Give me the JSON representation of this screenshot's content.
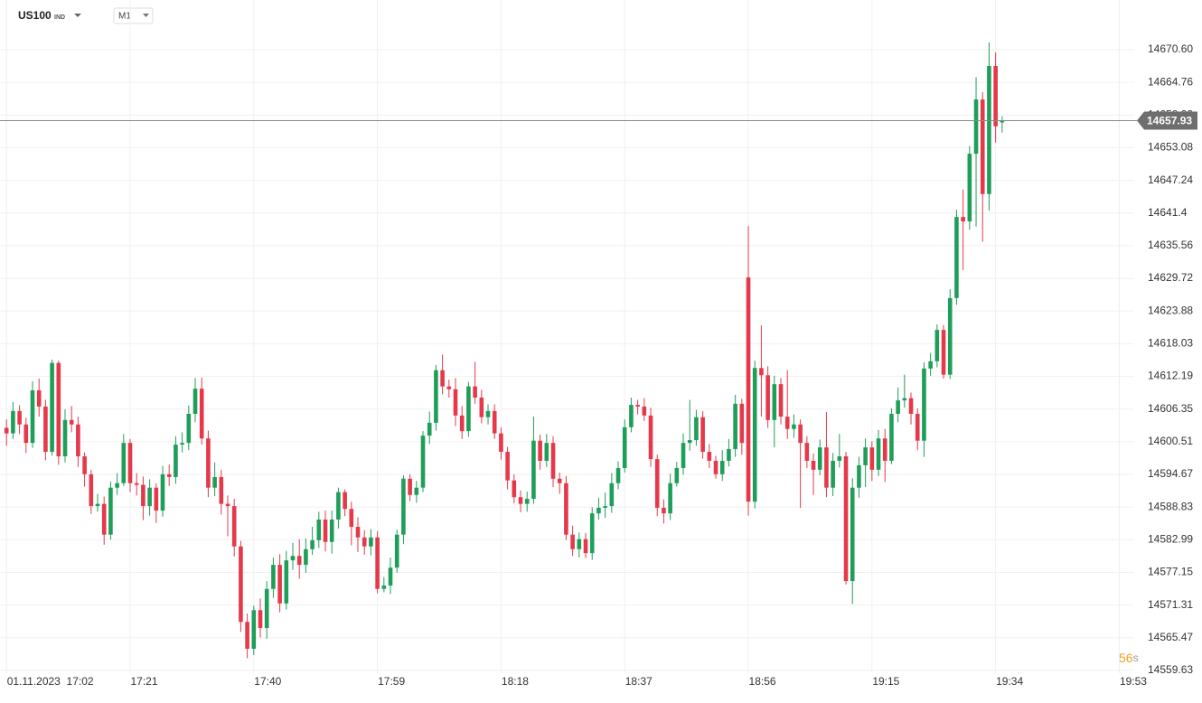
{
  "header": {
    "symbol": "US100",
    "symbol_type": "IND",
    "timeframe": "M1"
  },
  "chart_data": {
    "type": "candlestick",
    "up_color": "#1f9e5a",
    "down_color": "#e5394b",
    "xlim": [
      -1,
      173.3
    ],
    "xticks": [
      {
        "value": 0,
        "label": "01.11.2023  17:02"
      },
      {
        "value": 19,
        "label": "17:21"
      },
      {
        "value": 38,
        "label": "17:40"
      },
      {
        "value": 57,
        "label": "17:59"
      },
      {
        "value": 76,
        "label": "18:18"
      },
      {
        "value": 95,
        "label": "18:37"
      },
      {
        "value": 114,
        "label": "18:56"
      },
      {
        "value": 133,
        "label": "19:15"
      },
      {
        "value": 152,
        "label": "19:34"
      },
      {
        "value": 171,
        "label": "19:53"
      }
    ],
    "ylim": [
      14559.13,
      14679.49
    ],
    "yticks": [
      {
        "value": 14670.6,
        "label": "14670.60"
      },
      14664.76,
      14658.92,
      14653.08,
      14647.24,
      14641.4,
      14635.56,
      14629.72,
      14623.88,
      14618.03,
      14612.19,
      14606.35,
      14600.51,
      14594.67,
      14588.83,
      14582.99,
      14577.15,
      14571.31,
      14565.47,
      14559.63
    ],
    "grid": true,
    "last_price": 14657.93,
    "countdown": "56",
    "countdown_unit": "s",
    "open": [
      14603.0,
      14602.0,
      14606.0,
      14603.6,
      14600.3,
      14609.7,
      14606.8,
      14598.7,
      14614.6,
      14597.9,
      14604.4,
      14603.6,
      14597.9,
      14594.7,
      14589.0,
      14589.4,
      14583.9,
      14592.3,
      14593.1,
      14600.3,
      14593.1,
      14592.8,
      14589.0,
      14592.3,
      14588.2,
      14594.7,
      14594.2,
      14600.0,
      14600.3,
      14605.5,
      14610.0,
      14601.1,
      14592.3,
      14594.2,
      14589.4,
      14589.0,
      14581.8,
      14568.3,
      14563.5,
      14570.4,
      14567.2,
      14574.2,
      14578.5,
      14571.6,
      14579.3,
      14580.1,
      14578.5,
      14581.3,
      14582.9,
      14586.6,
      14582.6,
      14586.6,
      14591.5,
      14588.5,
      14585.3,
      14583.4,
      14581.8,
      14583.4,
      14574.2,
      14574.8,
      14578.0,
      14583.9,
      14593.9,
      14591.0,
      14592.3,
      14601.6,
      14603.9,
      14613.3,
      14610.4,
      14609.9,
      14605.2,
      14602.4,
      14610.4,
      14608.4,
      14604.9,
      14606.0,
      14602.0,
      14598.7,
      14593.6,
      14590.6,
      14589.4,
      14590.3,
      14600.7,
      14597.1,
      14600.3,
      14593.9,
      14593.1,
      14583.9,
      14581.3,
      14583.1,
      14580.6,
      14587.7,
      14588.7,
      14589.0,
      14593.1,
      14595.8,
      14603.1,
      14607.1,
      14606.8,
      14605.2,
      14597.4,
      14588.7,
      14587.7,
      14593.1,
      14595.8,
      14600.3,
      14600.8,
      14604.9,
      14598.7,
      14597.1,
      14594.7,
      14597.1,
      14599.2,
      14607.3,
      14629.9,
      14589.8,
      14613.7,
      14612.4,
      14604.4,
      14610.8,
      14605.0,
      14602.8,
      14603.6,
      14600.3,
      14597.1,
      14595.5,
      14599.5,
      14592.3,
      14597.1,
      14597.9,
      14575.6,
      14592.3,
      14596.3,
      14599.5,
      14595.5,
      14601.1,
      14597.1,
      14605.5,
      14607.9,
      14608.3,
      14605.5,
      14600.7,
      14613.6,
      14614.9,
      14620.5,
      14612.5,
      14626.2,
      14640.7,
      14639.9,
      14652.0,
      14661.7,
      14644.8,
      14667.7,
      14657.6
    ],
    "high": [
      14604.5,
      14607.6,
      14607.0,
      14604.8,
      14611.3,
      14611.8,
      14608.0,
      14615.2,
      14615.0,
      14606.3,
      14606.9,
      14605.0,
      14598.6,
      14595.5,
      14591.2,
      14590.7,
      14593.4,
      14594.9,
      14601.9,
      14601.0,
      14594.9,
      14594.3,
      14593.8,
      14593.1,
      14596.2,
      14596.4,
      14601.5,
      14602.2,
      14607.0,
      14611.9,
      14612.0,
      14602.5,
      14596.8,
      14595.5,
      14590.9,
      14590.3,
      14582.8,
      14569.8,
      14571.2,
      14572.5,
      14575.6,
      14579.8,
      14580.4,
      14581.0,
      14582.4,
      14583.1,
      14583.2,
      14585.3,
      14588.0,
      14588.2,
      14588.2,
      14592.3,
      14592.0,
      14589.8,
      14587.0,
      14584.7,
      14584.9,
      14584.5,
      14576.3,
      14579.8,
      14584.8,
      14594.5,
      14594.7,
      14593.5,
      14602.4,
      14605.9,
      14614.2,
      14616.1,
      14611.6,
      14611.9,
      14606.9,
      14611.2,
      14614.8,
      14609.8,
      14607.2,
      14607.2,
      14603.1,
      14599.6,
      14594.7,
      14591.8,
      14591.6,
      14605.0,
      14601.8,
      14601.9,
      14601.5,
      14595.0,
      14594.4,
      14585.5,
      14584.3,
      14584.2,
      14588.8,
      14590.5,
      14591.4,
      14594.9,
      14597.0,
      14604.5,
      14608.4,
      14608.0,
      14608.3,
      14606.6,
      14598.2,
      14590.2,
      14594.8,
      14596.9,
      14602.0,
      14608.0,
      14606.2,
      14606.0,
      14600.1,
      14598.0,
      14599.0,
      14601.0,
      14608.9,
      14608.2,
      14639.1,
      14615.0,
      14621.3,
      14614.0,
      14612.3,
      14611.9,
      14613.3,
      14605.4,
      14604.5,
      14601.5,
      14598.4,
      14600.9,
      14605.8,
      14598.5,
      14601.9,
      14598.7,
      14594.0,
      14597.8,
      14601.1,
      14600.6,
      14602.6,
      14602.8,
      14606.5,
      14610.2,
      14612.5,
      14609.3,
      14606.5,
      14614.7,
      14616.4,
      14621.5,
      14621.4,
      14627.8,
      14642.0,
      14645.6,
      14653.4,
      14665.7,
      14663.0,
      14671.9,
      14670.1,
      14658.7
    ],
    "low": [
      14599.8,
      14601.0,
      14601.9,
      14598.5,
      14599.4,
      14605.0,
      14597.2,
      14598.0,
      14596.4,
      14596.8,
      14602.2,
      14596.0,
      14592.5,
      14587.6,
      14588.0,
      14582.1,
      14583.0,
      14591.0,
      14592.6,
      14591.5,
      14590.9,
      14586.5,
      14587.3,
      14586.0,
      14587.1,
      14592.6,
      14593.0,
      14598.6,
      14599.0,
      14604.0,
      14600.0,
      14590.6,
      14590.8,
      14587.5,
      14583.6,
      14580.0,
      14566.5,
      14561.8,
      14562.4,
      14565.5,
      14565.3,
      14572.6,
      14570.0,
      14570.5,
      14577.6,
      14576.0,
      14577.1,
      14580.3,
      14581.5,
      14580.9,
      14580.5,
      14585.0,
      14587.2,
      14582.0,
      14580.8,
      14580.3,
      14580.2,
      14573.4,
      14573.6,
      14573.3,
      14577.1,
      14582.2,
      14589.9,
      14589.6,
      14591.5,
      14600.1,
      14602.5,
      14609.0,
      14608.4,
      14603.3,
      14601.0,
      14601.4,
      14607.3,
      14603.8,
      14603.6,
      14601.0,
      14597.3,
      14592.0,
      14589.5,
      14587.9,
      14588.0,
      14589.4,
      14595.5,
      14596.0,
      14592.4,
      14591.2,
      14582.9,
      14580.1,
      14579.8,
      14579.7,
      14579.4,
      14586.6,
      14586.9,
      14587.8,
      14592.0,
      14595.0,
      14602.2,
      14605.4,
      14604.2,
      14596.0,
      14587.2,
      14585.9,
      14586.5,
      14592.5,
      14594.6,
      14598.9,
      14599.8,
      14597.5,
      14595.8,
      14593.9,
      14593.5,
      14596.1,
      14597.8,
      14598.2,
      14587.3,
      14588.6,
      14605.0,
      14603.0,
      14599.5,
      14603.6,
      14601.0,
      14601.2,
      14588.7,
      14595.8,
      14591.0,
      14594.5,
      14590.6,
      14590.8,
      14595.9,
      14575.0,
      14571.5,
      14590.5,
      14592.4,
      14593.5,
      14594.4,
      14593.3,
      14596.5,
      14604.0,
      14606.6,
      14603.6,
      14599.0,
      14597.8,
      14612.3,
      14613.8,
      14611.8,
      14611.7,
      14625.0,
      14631.2,
      14638.4,
      14639.0,
      14636.3,
      14641.8,
      14654.0,
      14655.8
    ],
    "close": [
      14602.0,
      14606.0,
      14603.6,
      14600.3,
      14609.7,
      14606.8,
      14598.7,
      14614.6,
      14597.9,
      14604.4,
      14603.6,
      14597.9,
      14594.7,
      14589.0,
      14589.4,
      14583.9,
      14592.3,
      14593.1,
      14600.3,
      14593.1,
      14592.8,
      14589.0,
      14592.3,
      14588.2,
      14594.7,
      14594.2,
      14600.0,
      14600.3,
      14605.5,
      14610.0,
      14601.1,
      14592.3,
      14594.2,
      14589.4,
      14589.0,
      14581.8,
      14568.3,
      14563.5,
      14570.4,
      14567.2,
      14574.2,
      14578.5,
      14571.6,
      14579.3,
      14580.1,
      14578.5,
      14581.3,
      14582.9,
      14586.6,
      14582.6,
      14586.6,
      14591.5,
      14588.5,
      14585.3,
      14583.4,
      14581.8,
      14583.4,
      14574.2,
      14574.8,
      14578.0,
      14583.9,
      14593.9,
      14591.0,
      14592.3,
      14601.6,
      14603.9,
      14613.3,
      14610.4,
      14609.9,
      14605.2,
      14602.4,
      14610.4,
      14608.4,
      14604.9,
      14606.0,
      14602.0,
      14598.7,
      14593.6,
      14590.6,
      14589.4,
      14590.3,
      14600.7,
      14597.1,
      14600.3,
      14593.9,
      14593.1,
      14583.9,
      14581.3,
      14583.1,
      14580.6,
      14587.7,
      14588.7,
      14589.0,
      14593.1,
      14595.8,
      14603.1,
      14607.1,
      14606.8,
      14605.2,
      14597.4,
      14588.7,
      14587.7,
      14593.1,
      14595.8,
      14600.3,
      14600.8,
      14604.9,
      14598.7,
      14597.1,
      14594.7,
      14597.1,
      14599.2,
      14607.3,
      14600.3,
      14589.8,
      14613.7,
      14612.4,
      14604.4,
      14610.8,
      14605.0,
      14602.8,
      14603.6,
      14600.3,
      14597.1,
      14595.5,
      14599.5,
      14592.3,
      14597.1,
      14597.9,
      14575.6,
      14592.3,
      14596.3,
      14599.5,
      14595.5,
      14601.1,
      14597.1,
      14605.5,
      14607.9,
      14608.3,
      14605.5,
      14600.7,
      14613.6,
      14614.9,
      14620.5,
      14612.5,
      14626.2,
      14640.7,
      14639.9,
      14652.0,
      14661.7,
      14644.8,
      14667.7,
      14656.9,
      14657.9
    ]
  }
}
